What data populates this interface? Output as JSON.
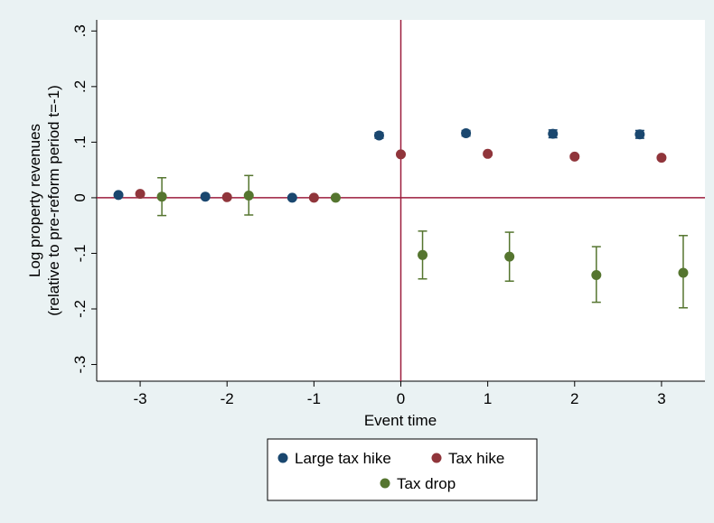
{
  "chart_data": {
    "type": "scatter",
    "title": "",
    "xlabel": "Event time",
    "ylabel_lines": [
      "Log property revenues",
      "(relative to pre-reform period t=-1)"
    ],
    "xlim": [
      -3.5,
      3.5
    ],
    "ylim": [
      -0.33,
      0.32
    ],
    "x_ticks": [
      -3,
      -2,
      -1,
      0,
      1,
      2,
      3
    ],
    "x_tick_labels": [
      "-3",
      "-2",
      "-1",
      "0",
      "1",
      "2",
      "3"
    ],
    "y_ticks": [
      -0.3,
      -0.2,
      -0.1,
      0,
      0.1,
      0.2,
      0.3
    ],
    "y_tick_labels": [
      "-.3",
      "-.2",
      "-.1",
      "0",
      ".1",
      ".2",
      ".3"
    ],
    "grid": false,
    "reference_lines": {
      "x": 0,
      "y": 0,
      "color": "#9c1c3c"
    },
    "legend_position": "bottom",
    "series": [
      {
        "name": "Large tax hike",
        "color": "#1a476f",
        "x": [
          -3.25,
          -2.25,
          -1.25,
          -0.25,
          0.75,
          1.75,
          2.75
        ],
        "y": [
          0.005,
          0.002,
          0.0,
          0.112,
          0.116,
          0.115,
          0.114
        ],
        "ci_low": [
          0.002,
          0.0,
          -0.002,
          0.107,
          0.111,
          0.108,
          0.107
        ],
        "ci_high": [
          0.008,
          0.004,
          0.002,
          0.117,
          0.121,
          0.122,
          0.121
        ]
      },
      {
        "name": "Tax hike",
        "color": "#90353b",
        "x": [
          -3,
          -2,
          -1,
          0,
          1,
          2,
          3
        ],
        "y": [
          0.007,
          0.001,
          0.0,
          0.078,
          0.079,
          0.074,
          0.072
        ],
        "ci_low": [
          0.005,
          -0.001,
          -0.002,
          0.075,
          0.076,
          0.071,
          0.069
        ],
        "ci_high": [
          0.009,
          0.003,
          0.002,
          0.081,
          0.082,
          0.077,
          0.075
        ]
      },
      {
        "name": "Tax drop",
        "color": "#55752f",
        "x": [
          -2.75,
          -1.75,
          -0.75,
          0.25,
          1.25,
          2.25,
          3.25
        ],
        "y": [
          0.002,
          0.004,
          0.0,
          -0.103,
          -0.106,
          -0.139,
          -0.135
        ],
        "ci_low": [
          -0.032,
          -0.031,
          -0.002,
          -0.146,
          -0.15,
          -0.188,
          -0.198
        ],
        "ci_high": [
          0.036,
          0.04,
          0.002,
          -0.06,
          -0.062,
          -0.088,
          -0.068
        ]
      }
    ]
  },
  "legend": {
    "items": [
      {
        "label": "Large tax hike"
      },
      {
        "label": "Tax hike"
      },
      {
        "label": "Tax drop"
      }
    ]
  }
}
